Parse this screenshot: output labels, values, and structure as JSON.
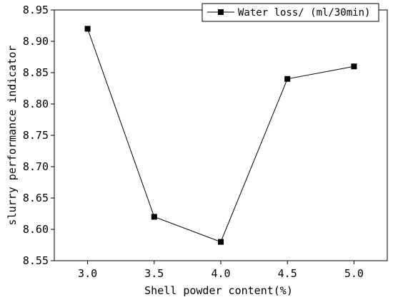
{
  "chart_data": {
    "type": "line",
    "xlabel": "Shell powder content(%)",
    "ylabel": "slurry performance indicator",
    "x_ticks": [
      "3.0",
      "3.5",
      "4.0",
      "4.5",
      "5.0"
    ],
    "y_ticks": [
      "8.55",
      "8.60",
      "8.65",
      "8.70",
      "8.75",
      "8.80",
      "8.85",
      "8.90",
      "8.95"
    ],
    "xlim": [
      2.75,
      5.25
    ],
    "ylim": [
      8.55,
      8.95
    ],
    "grid": false,
    "legend_position": "top-right",
    "series": [
      {
        "name": "Water loss/ (ml/30min)",
        "marker": "square",
        "color": "#000000",
        "x": [
          3.0,
          3.5,
          4.0,
          4.5,
          5.0
        ],
        "y": [
          8.92,
          8.62,
          8.58,
          8.84,
          8.86
        ]
      }
    ]
  }
}
